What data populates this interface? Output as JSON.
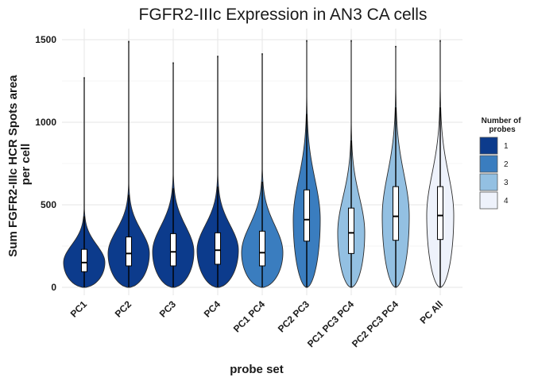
{
  "chart_data": {
    "type": "violin",
    "title": "FGFR2-IIIc Expression in AN3 CA cells",
    "xlabel": "probe set",
    "ylabel_lines": [
      "Sum FGFR2-IIIc HCR Spots area",
      "per cell"
    ],
    "ylim": [
      0,
      1500
    ],
    "yticks": [
      0,
      500,
      1000,
      1500
    ],
    "grid": true,
    "legend": {
      "title_lines": [
        "Number of",
        "probes"
      ],
      "placement": "right",
      "entries": [
        {
          "label": "1",
          "color": "#0c3b8c"
        },
        {
          "label": "2",
          "color": "#3a7dbf"
        },
        {
          "label": "3",
          "color": "#93c0e2"
        },
        {
          "label": "4",
          "color": "#eef2fb"
        }
      ]
    },
    "categories": [
      "PC1",
      "PC2",
      "PC3",
      "PC4",
      "PC1 PC4",
      "PC2 PC3",
      "PC1 PC3 PC4",
      "PC2 PC3 PC4",
      "PC All"
    ],
    "series": [
      {
        "category": "PC1",
        "num_probes": "1",
        "min": 0,
        "q1": 95,
        "median": 150,
        "q3": 230,
        "max": 1270,
        "upper_whisker": 430
      },
      {
        "category": "PC2",
        "num_probes": "1",
        "min": 0,
        "q1": 130,
        "median": 205,
        "q3": 305,
        "max": 1490,
        "upper_whisker": 560
      },
      {
        "category": "PC3",
        "num_probes": "1",
        "min": 0,
        "q1": 130,
        "median": 215,
        "q3": 325,
        "max": 1360,
        "upper_whisker": 600
      },
      {
        "category": "PC4",
        "num_probes": "1",
        "min": 0,
        "q1": 140,
        "median": 225,
        "q3": 330,
        "max": 1400,
        "upper_whisker": 610
      },
      {
        "category": "PC1 PC4",
        "num_probes": "2",
        "min": 0,
        "q1": 130,
        "median": 210,
        "q3": 340,
        "max": 1415,
        "upper_whisker": 640
      },
      {
        "category": "PC2 PC3",
        "num_probes": "2",
        "min": 0,
        "q1": 280,
        "median": 410,
        "q3": 590,
        "max": 1495,
        "upper_whisker": 1050
      },
      {
        "category": "PC1 PC3 PC4",
        "num_probes": "3",
        "min": 0,
        "q1": 205,
        "median": 330,
        "q3": 480,
        "max": 1495,
        "upper_whisker": 890
      },
      {
        "category": "PC2 PC3 PC4",
        "num_probes": "3",
        "min": 0,
        "q1": 285,
        "median": 430,
        "q3": 610,
        "max": 1460,
        "upper_whisker": 1090
      },
      {
        "category": "PC All",
        "num_probes": "4",
        "min": 0,
        "q1": 290,
        "median": 435,
        "q3": 610,
        "max": 1495,
        "upper_whisker": 1090
      }
    ]
  }
}
